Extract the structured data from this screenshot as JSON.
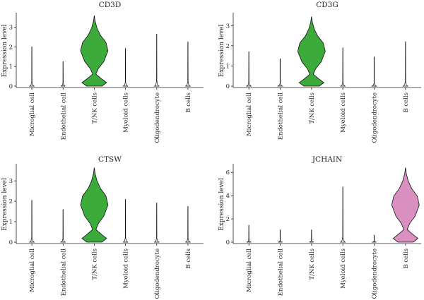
{
  "chart_data": [
    {
      "type": "violin",
      "title": "CD3D",
      "ylabel": "Expression level",
      "ylim": [
        0,
        3.6
      ],
      "yticks": [
        0,
        1,
        2,
        3
      ],
      "categories": [
        "Microglial cell",
        "Endothelial cell",
        "T/NK cells",
        "Myeloid cells",
        "Oligodendrocyte",
        "B cells"
      ],
      "max_values": [
        2.0,
        1.25,
        3.6,
        1.92,
        2.65,
        2.25
      ],
      "colors": [
        "#ffffff",
        "#ffffff",
        "#3cab3c",
        "#ffffff",
        "#ffffff",
        "#ffffff"
      ]
    },
    {
      "type": "violin",
      "title": "CD3G",
      "ylabel": "Expression level",
      "ylim": [
        0,
        3.5
      ],
      "yticks": [
        0,
        1,
        2,
        3
      ],
      "categories": [
        "Microglial cell",
        "Endothelial cell",
        "T/NK cells",
        "Myeloid cells",
        "Oligodendrocyte",
        "B cells"
      ],
      "max_values": [
        1.7,
        1.35,
        3.45,
        1.9,
        1.45,
        2.2
      ],
      "colors": [
        "#ffffff",
        "#ffffff",
        "#3cab3c",
        "#ffffff",
        "#ffffff",
        "#ffffff"
      ]
    },
    {
      "type": "violin",
      "title": "CTSW",
      "ylabel": "Expression level",
      "ylim": [
        0,
        3.7
      ],
      "yticks": [
        0,
        1,
        2,
        3
      ],
      "categories": [
        "Microglial cell",
        "Endothelial cell",
        "T/NK cells",
        "Myeloid cells",
        "Oligodendrocyte",
        "B cells"
      ],
      "max_values": [
        2.05,
        1.6,
        3.65,
        2.1,
        1.92,
        1.75
      ],
      "colors": [
        "#ffffff",
        "#ffffff",
        "#3cab3c",
        "#ffffff",
        "#ffffff",
        "#ffffff"
      ]
    },
    {
      "type": "violin",
      "title": "JCHAIN",
      "ylabel": "Expression level",
      "ylim": [
        0,
        6.5
      ],
      "yticks": [
        0,
        2,
        4,
        6
      ],
      "categories": [
        "Microglial cell",
        "Endothelial cell",
        "T/NK cells",
        "Myeloid cells",
        "Oligodendrocyte",
        "B cells"
      ],
      "max_values": [
        1.45,
        1.05,
        1.05,
        4.75,
        0.6,
        6.4
      ],
      "colors": [
        "#ffffff",
        "#ffffff",
        "#ffffff",
        "#ffffff",
        "#ffffff",
        "#d98fc0"
      ]
    }
  ]
}
